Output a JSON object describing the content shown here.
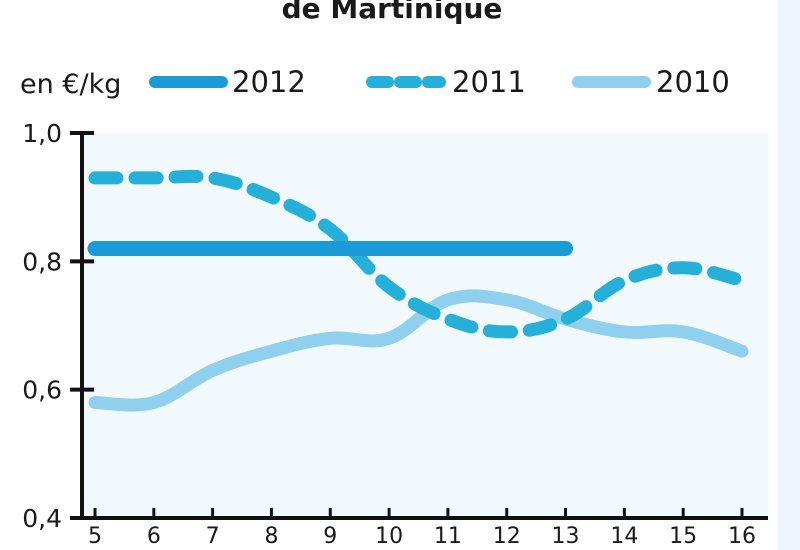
{
  "chart_data": {
    "type": "line",
    "title": "de Martinique",
    "unit_label": "en €/kg",
    "x": [
      5,
      6,
      7,
      8,
      9,
      10,
      11,
      12,
      13,
      14,
      15,
      16
    ],
    "y_ticks": [
      "1,0",
      "0,8",
      "0,6",
      "0,4"
    ],
    "ylim": [
      0.4,
      1.0
    ],
    "xlim": [
      5,
      16
    ],
    "grid": false,
    "legend_position": "top",
    "series": [
      {
        "name": "2012",
        "style": "solid",
        "color": "#1a9bd7",
        "x": [
          5,
          13
        ],
        "values": [
          0.82,
          0.82
        ]
      },
      {
        "name": "2011",
        "style": "dashed",
        "color": "#26afd9",
        "x": [
          5,
          6,
          7,
          8,
          9,
          10,
          11,
          12,
          13,
          14,
          15,
          16
        ],
        "values": [
          0.93,
          0.93,
          0.93,
          0.9,
          0.85,
          0.76,
          0.71,
          0.69,
          0.71,
          0.77,
          0.79,
          0.77
        ]
      },
      {
        "name": "2010",
        "style": "solid",
        "color": "#8fd0ee",
        "x": [
          5,
          6,
          7,
          8,
          9,
          10,
          11,
          12,
          13,
          14,
          15,
          16
        ],
        "values": [
          0.58,
          0.58,
          0.63,
          0.66,
          0.68,
          0.68,
          0.74,
          0.74,
          0.71,
          0.69,
          0.69,
          0.66
        ]
      }
    ]
  },
  "colors": {
    "plot_background": "#f2f9fd",
    "axis": "#111111"
  }
}
